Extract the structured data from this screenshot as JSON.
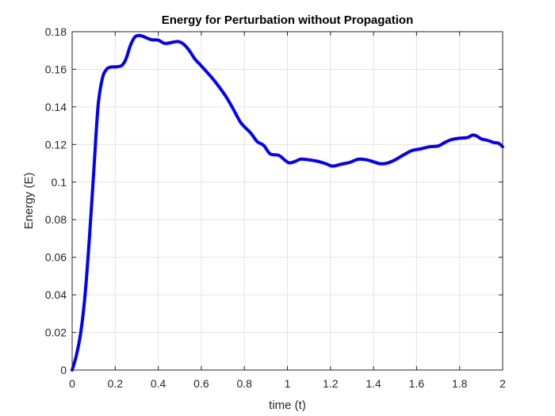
{
  "chart_data": {
    "type": "line",
    "title": "Energy for Perturbation without Propagation",
    "xlabel": "time (t)",
    "ylabel": "Energy (E)",
    "xlim": [
      0,
      2
    ],
    "ylim": [
      0,
      0.18
    ],
    "grid": true,
    "x_ticks": [
      0,
      0.2,
      0.4,
      0.6,
      0.8,
      1,
      1.2,
      1.4,
      1.6,
      1.8,
      2
    ],
    "x_tick_labels": [
      "0",
      "0.2",
      "0.4",
      "0.6",
      "0.8",
      "1",
      "1.2",
      "1.4",
      "1.6",
      "1.8",
      "2"
    ],
    "y_ticks": [
      0,
      0.02,
      0.04,
      0.06,
      0.08,
      0.1,
      0.12,
      0.14,
      0.16,
      0.18
    ],
    "y_tick_labels": [
      "0",
      "0.02",
      "0.04",
      "0.06",
      "0.08",
      "0.1",
      "0.12",
      "0.14",
      "0.16",
      "0.18"
    ],
    "series": [
      {
        "name": "Energy",
        "color": "#0000ff",
        "x": [
          0,
          0.02,
          0.04,
          0.06,
          0.08,
          0.1,
          0.12,
          0.14,
          0.16,
          0.18,
          0.2,
          0.23,
          0.25,
          0.27,
          0.29,
          0.31,
          0.33,
          0.35,
          0.37,
          0.4,
          0.43,
          0.46,
          0.49,
          0.51,
          0.53,
          0.55,
          0.57,
          0.6,
          0.63,
          0.66,
          0.69,
          0.72,
          0.75,
          0.78,
          0.8,
          0.83,
          0.86,
          0.89,
          0.92,
          0.96,
          0.99,
          1.01,
          1.04,
          1.06,
          1.09,
          1.12,
          1.15,
          1.18,
          1.21,
          1.25,
          1.29,
          1.33,
          1.37,
          1.4,
          1.43,
          1.46,
          1.5,
          1.54,
          1.58,
          1.62,
          1.66,
          1.7,
          1.73,
          1.76,
          1.79,
          1.82,
          1.84,
          1.86,
          1.88,
          1.9,
          1.93,
          1.96,
          1.98,
          2.0
        ],
        "y": [
          0,
          0.008,
          0.02,
          0.04,
          0.07,
          0.105,
          0.14,
          0.155,
          0.16,
          0.1612,
          0.1613,
          0.162,
          0.1655,
          0.1725,
          0.177,
          0.178,
          0.1775,
          0.1765,
          0.1757,
          0.1755,
          0.1738,
          0.1742,
          0.1748,
          0.174,
          0.172,
          0.169,
          0.1655,
          0.1618,
          0.158,
          0.154,
          0.1495,
          0.1445,
          0.1385,
          0.1322,
          0.1295,
          0.126,
          0.1215,
          0.1195,
          0.115,
          0.1142,
          0.1115,
          0.1102,
          0.1112,
          0.1122,
          0.112,
          0.1115,
          0.1108,
          0.1097,
          0.1085,
          0.1095,
          0.1105,
          0.1122,
          0.1118,
          0.1108,
          0.1098,
          0.11,
          0.1118,
          0.1145,
          0.1168,
          0.1177,
          0.1188,
          0.1192,
          0.121,
          0.1225,
          0.1232,
          0.1235,
          0.1238,
          0.125,
          0.1245,
          0.123,
          0.1222,
          0.121,
          0.1207,
          0.1188
        ]
      }
    ]
  }
}
